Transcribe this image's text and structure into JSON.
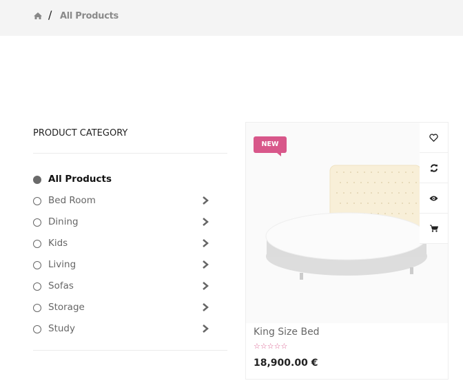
{
  "breadcrumb": {
    "home_icon": "home-icon",
    "separator": "/",
    "current": "All Products"
  },
  "sidebar": {
    "title": "PRODUCT CATEGORY",
    "items": [
      {
        "label": "All Products",
        "active": true
      },
      {
        "label": "Bed Room"
      },
      {
        "label": "Dining"
      },
      {
        "label": "Kids"
      },
      {
        "label": "Living"
      },
      {
        "label": "Sofas"
      },
      {
        "label": "Storage"
      },
      {
        "label": "Study"
      }
    ]
  },
  "product": {
    "badge": "NEW",
    "name": "King Size Bed",
    "rating": 0,
    "rating_max": 5,
    "stars": "☆☆☆☆☆",
    "price": "18,900.00 €",
    "actions": [
      "heart-icon",
      "refresh-icon",
      "eye-icon",
      "cart-icon"
    ],
    "accent": "#d8578a"
  }
}
